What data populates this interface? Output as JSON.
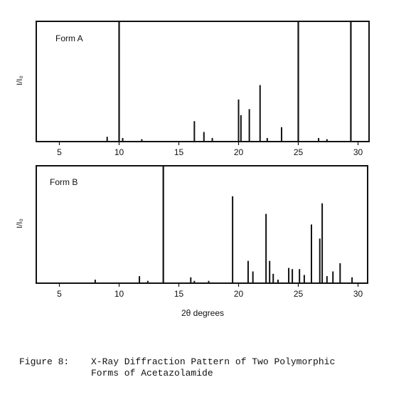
{
  "caption": {
    "label": "Figure 8:",
    "line1": "X-Ray Diffraction Pattern of Two Polymorphic",
    "line2": "Forms of Acetazolamide"
  },
  "chart_data": [
    {
      "type": "bar",
      "title": "Form A",
      "ylabel": "I/I₀",
      "xlabel": "",
      "xlim": [
        3,
        31
      ],
      "ylim": [
        0,
        100
      ],
      "xticks": [
        5,
        10,
        15,
        20,
        25,
        30
      ],
      "x": [
        9.0,
        10.0,
        10.3,
        11.9,
        16.3,
        17.1,
        17.8,
        20.0,
        20.2,
        20.9,
        21.8,
        22.4,
        23.6,
        25.0,
        26.7,
        27.4,
        29.4
      ],
      "values": [
        4,
        100,
        3,
        2,
        17,
        8,
        3,
        35,
        22,
        27,
        47,
        3,
        12,
        100,
        3,
        2,
        100
      ]
    },
    {
      "type": "bar",
      "title": "Form B",
      "ylabel": "I/I₀",
      "xlabel": "2θ degrees",
      "xlim": [
        3,
        31
      ],
      "ylim": [
        0,
        100
      ],
      "xticks": [
        5,
        10,
        15,
        20,
        25,
        30
      ],
      "x": [
        8.0,
        11.7,
        12.4,
        13.7,
        16.0,
        16.3,
        17.5,
        19.5,
        20.8,
        21.2,
        22.3,
        22.6,
        22.9,
        23.3,
        24.2,
        24.5,
        25.1,
        25.5,
        26.1,
        26.8,
        27.0,
        27.4,
        27.9,
        28.5,
        29.5
      ],
      "values": [
        3,
        6,
        2,
        100,
        5,
        2,
        2,
        74,
        19,
        10,
        59,
        19,
        8,
        3,
        13,
        12,
        12,
        7,
        50,
        38,
        68,
        6,
        10,
        17,
        5
      ]
    }
  ]
}
